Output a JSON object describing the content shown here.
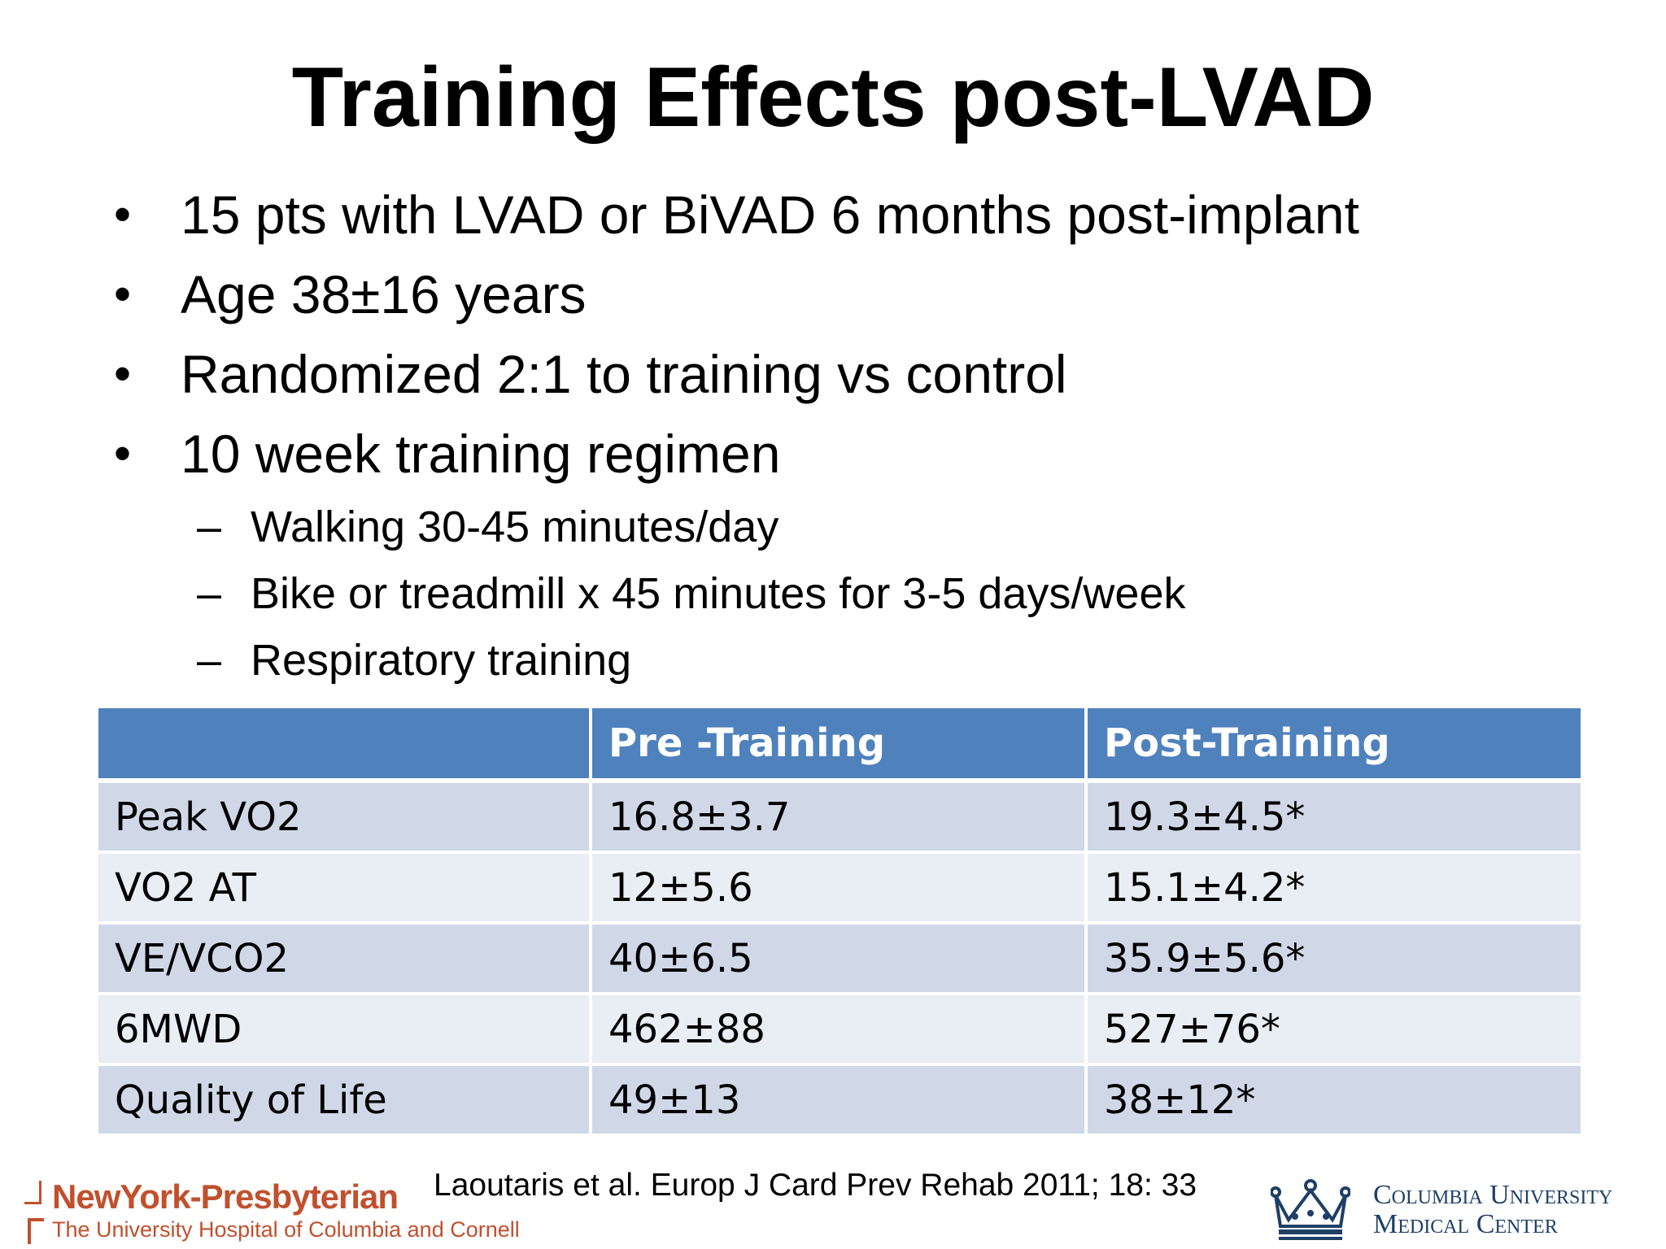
{
  "slide": {
    "title": "Training Effects post-LVAD",
    "bullets": [
      "15 pts with LVAD or BiVAD 6 months post-implant",
      "Age 38±16 years",
      "Randomized 2:1 to training vs control",
      "10 week training regimen"
    ],
    "sub_bullets": [
      "Walking 30-45 minutes/day",
      "Bike or treadmill x 45 minutes for 3-5 days/week",
      "Respiratory training"
    ],
    "bullet_glyph": "•",
    "dash_glyph": "–"
  },
  "table": {
    "headers": [
      "",
      "Pre -Training",
      "Post-Training"
    ],
    "rows": [
      [
        "Peak VO2",
        "16.8±3.7",
        "19.3±4.5*"
      ],
      [
        "VO2 AT",
        "12±5.6",
        "15.1±4.2*"
      ],
      [
        "VE/VCO2",
        "40±6.5",
        "35.9±5.6*"
      ],
      [
        "6MWD",
        "462±88",
        "527±76*"
      ],
      [
        "Quality of Life",
        "49±13",
        "38±12*"
      ]
    ]
  },
  "citation": "Laoutaris et al. Europ J Card Prev Rehab 2011; 18: 33",
  "logos": {
    "nyp_name": "NewYork-Presbyterian",
    "nyp_subtitle": "The University Hospital of Columbia and Cornell",
    "cumc_line1": "Columbia University",
    "cumc_line2": "Medical Center",
    "crown_icon": "crown-icon"
  },
  "colors": {
    "header_bg": "#4f81bd",
    "row_odd": "#d0d8e8",
    "row_even": "#e9edf4",
    "nyp_brand": "#c1502e",
    "cumc_brand": "#1e3f66"
  }
}
